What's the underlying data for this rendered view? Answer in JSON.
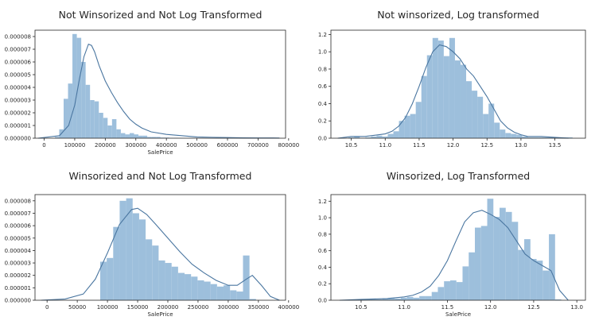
{
  "chart_data": [
    {
      "type": "histogram",
      "title": "Not Winsorized and Not Log Transformed",
      "xlabel": "SalePrice",
      "ylabel": "",
      "xlim": [
        -30000,
        790000
      ],
      "ylim": [
        0,
        8.5e-06
      ],
      "xticks": [
        0,
        100000,
        200000,
        300000,
        400000,
        500000,
        600000,
        700000,
        800000
      ],
      "xtick_labels": [
        "0",
        "100000",
        "200000",
        "300000",
        "400000",
        "500000",
        "600000",
        "700000",
        "800000"
      ],
      "yticks": [
        0,
        1e-06,
        2e-06,
        3e-06,
        4e-06,
        5e-06,
        6e-06,
        7e-06,
        8e-06
      ],
      "ytick_labels": [
        "0.000000",
        "0.000001",
        "0.000002",
        "0.000003",
        "0.000004",
        "0.000005",
        "0.000006",
        "0.000007",
        "0.000008"
      ],
      "bins": {
        "start": 34900,
        "width": 14400,
        "heights": [
          1e-07,
          7e-07,
          3.1e-06,
          4.3e-06,
          8.2e-06,
          7.9e-06,
          6e-06,
          4.2e-06,
          3e-06,
          2.9e-06,
          2e-06,
          1.6e-06,
          1e-06,
          1.5e-06,
          7e-07,
          4e-07,
          3e-07,
          4e-07,
          3e-07,
          2e-07,
          2e-07,
          1e-07,
          1e-07,
          1e-07,
          5e-08,
          5e-08,
          3e-08,
          3e-08,
          2e-08,
          2e-08,
          2e-08,
          2e-08,
          1e-08,
          1e-08,
          1e-08,
          1e-08,
          1e-08,
          1e-08,
          1e-08,
          1e-08,
          1e-08,
          1e-08,
          1e-08,
          1e-08,
          1e-08,
          1e-08,
          2e-08,
          2e-08,
          1e-08,
          1e-08
        ]
      },
      "kde": {
        "x": [
          -20000,
          50000,
          80000,
          100000,
          115000,
          130000,
          145000,
          155000,
          165000,
          180000,
          200000,
          220000,
          240000,
          260000,
          280000,
          300000,
          320000,
          350000,
          400000,
          450000,
          500000,
          550000,
          600000,
          650000,
          700000,
          750000,
          770000
        ],
        "y": [
          0.0,
          2e-07,
          1e-06,
          2.6e-06,
          4.6e-06,
          6.4e-06,
          7.4e-06,
          7.3e-06,
          6.8e-06,
          5.7e-06,
          4.5e-06,
          3.6e-06,
          2.8e-06,
          2.1e-06,
          1.5e-06,
          1.1e-06,
          8e-07,
          5e-07,
          3e-07,
          2e-07,
          1e-07,
          7e-08,
          5e-08,
          3e-08,
          2e-08,
          2e-08,
          1e-08
        ]
      },
      "grid": false
    },
    {
      "type": "histogram",
      "title": "Not winsorized, Log transformed",
      "xlabel": "",
      "ylabel": "",
      "xlim": [
        10.2,
        13.95
      ],
      "ylim": [
        0,
        1.25
      ],
      "xticks": [
        10.5,
        11.0,
        11.5,
        12.0,
        12.5,
        13.0,
        13.5
      ],
      "xtick_labels": [
        "10.5",
        "11.0",
        "11.5",
        "12.0",
        "12.5",
        "13.0",
        "13.5"
      ],
      "yticks": [
        0,
        0.2,
        0.4,
        0.6,
        0.8,
        1.0,
        1.2
      ],
      "ytick_labels": [
        "0.0",
        "0.2",
        "0.4",
        "0.6",
        "0.8",
        "1.0",
        "1.2"
      ],
      "bins": {
        "start": 10.46,
        "width": 0.0825,
        "heights": [
          0.01,
          0.02,
          0.0,
          0.01,
          0.02,
          0.03,
          0.02,
          0.05,
          0.08,
          0.2,
          0.26,
          0.28,
          0.42,
          0.72,
          0.96,
          1.16,
          1.13,
          0.95,
          1.16,
          0.9,
          0.85,
          0.66,
          0.55,
          0.48,
          0.28,
          0.4,
          0.18,
          0.1,
          0.06,
          0.05,
          0.04,
          0.02,
          0.01,
          0.01,
          0.01,
          0.01,
          0.01,
          0.01,
          0.01,
          0.01
        ]
      },
      "kde": {
        "x": [
          10.3,
          10.5,
          10.7,
          10.9,
          11.0,
          11.1,
          11.2,
          11.3,
          11.4,
          11.5,
          11.6,
          11.7,
          11.8,
          11.9,
          12.0,
          12.1,
          12.2,
          12.3,
          12.4,
          12.5,
          12.6,
          12.7,
          12.8,
          12.9,
          13.0,
          13.1,
          13.3,
          13.5,
          13.7
        ],
        "y": [
          0.0,
          0.02,
          0.02,
          0.04,
          0.05,
          0.08,
          0.14,
          0.24,
          0.4,
          0.6,
          0.82,
          1.0,
          1.08,
          1.06,
          1.0,
          0.92,
          0.8,
          0.72,
          0.6,
          0.48,
          0.34,
          0.2,
          0.12,
          0.07,
          0.04,
          0.02,
          0.02,
          0.01,
          0.0
        ]
      },
      "grid": false
    },
    {
      "type": "histogram",
      "title": "Winsorized and Not Log Transformed",
      "xlabel": "SalePrice",
      "ylabel": "",
      "xlim": [
        -20000,
        395000
      ],
      "ylim": [
        0,
        8.5e-06
      ],
      "xticks": [
        0,
        50000,
        100000,
        150000,
        200000,
        250000,
        300000,
        350000,
        400000
      ],
      "xtick_labels": [
        "0",
        "50000",
        "100000",
        "150000",
        "200000",
        "250000",
        "300000",
        "350000",
        "400000"
      ],
      "yticks": [
        0,
        1e-06,
        2e-06,
        3e-06,
        4e-06,
        5e-06,
        6e-06,
        7e-06,
        8e-06
      ],
      "ytick_labels": [
        "0.000000",
        "0.000001",
        "0.000002",
        "0.000003",
        "0.000004",
        "0.000005",
        "0.000006",
        "0.000007",
        "0.000008"
      ],
      "bins": {
        "start": 88000,
        "width": 10750,
        "heights": [
          3.1e-06,
          3.4e-06,
          5.9e-06,
          8e-06,
          8.2e-06,
          7e-06,
          6.5e-06,
          4.9e-06,
          4.4e-06,
          3.2e-06,
          3e-06,
          2.7e-06,
          2.2e-06,
          2.1e-06,
          1.9e-06,
          1.6e-06,
          1.5e-06,
          1.3e-06,
          1.1e-06,
          1.2e-06,
          8e-07,
          7e-07,
          3.6e-06,
          1e-07
        ]
      },
      "kde": {
        "x": [
          -10000,
          30000,
          60000,
          80000,
          100000,
          120000,
          140000,
          150000,
          165000,
          180000,
          200000,
          220000,
          240000,
          260000,
          280000,
          300000,
          315000,
          330000,
          340000,
          355000,
          370000,
          385000
        ],
        "y": [
          0.0,
          1e-07,
          5e-07,
          1.7e-06,
          3.8e-06,
          6.1e-06,
          7.3e-06,
          7.4e-06,
          6.9e-06,
          6.1e-06,
          5e-06,
          3.9e-06,
          2.9e-06,
          2.2e-06,
          1.6e-06,
          1.2e-06,
          1.2e-06,
          1.7e-06,
          2e-06,
          1.2e-06,
          3e-07,
          0.0
        ]
      },
      "grid": false
    },
    {
      "type": "histogram",
      "title": "Winsorized, Log Transformed",
      "xlabel": "SalePrice",
      "ylabel": "",
      "xlim": [
        10.15,
        13.1
      ],
      "ylim": [
        0,
        1.28
      ],
      "xticks": [
        10.5,
        11.0,
        11.5,
        12.0,
        12.5,
        13.0
      ],
      "xtick_labels": [
        "10.5",
        "11.0",
        "11.5",
        "12.0",
        "12.5",
        "13.0"
      ],
      "yticks": [
        0,
        0.2,
        0.4,
        0.6,
        0.8,
        1.0,
        1.2
      ],
      "ytick_labels": [
        "0.0",
        "0.2",
        "0.4",
        "0.6",
        "0.8",
        "1.0",
        "1.2"
      ],
      "bins": {
        "start": 10.46,
        "width": 0.0715,
        "heights": [
          0.01,
          0.01,
          0.02,
          0.01,
          0.02,
          0.03,
          0.02,
          0.03,
          0.04,
          0.03,
          0.05,
          0.05,
          0.1,
          0.16,
          0.23,
          0.24,
          0.22,
          0.41,
          0.58,
          0.88,
          0.9,
          1.23,
          1.01,
          1.12,
          1.07,
          0.95,
          0.61,
          0.74,
          0.5,
          0.48,
          0.36,
          0.8,
          0.01
        ]
      },
      "kde": {
        "x": [
          10.25,
          10.5,
          10.8,
          11.0,
          11.1,
          11.2,
          11.3,
          11.4,
          11.5,
          11.6,
          11.7,
          11.8,
          11.9,
          12.0,
          12.1,
          12.2,
          12.3,
          12.4,
          12.5,
          12.6,
          12.7,
          12.8,
          12.9
        ],
        "y": [
          0.0,
          0.01,
          0.02,
          0.04,
          0.06,
          0.1,
          0.17,
          0.3,
          0.48,
          0.72,
          0.95,
          1.06,
          1.09,
          1.04,
          0.98,
          0.88,
          0.72,
          0.56,
          0.48,
          0.42,
          0.36,
          0.12,
          0.0
        ]
      },
      "grid": false
    }
  ]
}
